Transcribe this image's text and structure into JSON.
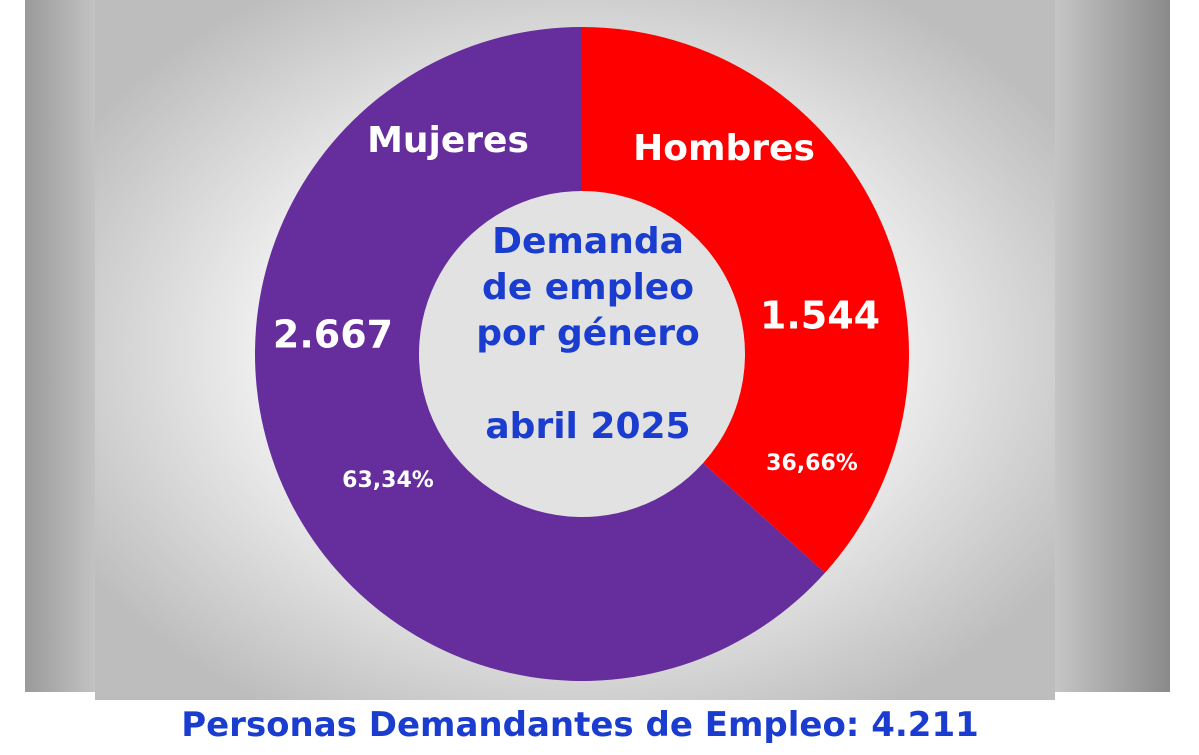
{
  "chart_data": {
    "type": "pie",
    "donut": true,
    "categories": [
      "Mujeres",
      "Hombres"
    ],
    "values": [
      2667,
      1544
    ],
    "value_labels": [
      "2.667",
      "1.544"
    ],
    "percent_labels": [
      "63,34%",
      "36,66%"
    ],
    "colors": [
      "#662d9c",
      "#ff0000"
    ],
    "center_title_lines": [
      "Demanda",
      "de empleo",
      "por género",
      "abril 2025"
    ],
    "legend": "none"
  },
  "footer": {
    "caption": "Personas Demandantes de Empleo: 4.211"
  }
}
